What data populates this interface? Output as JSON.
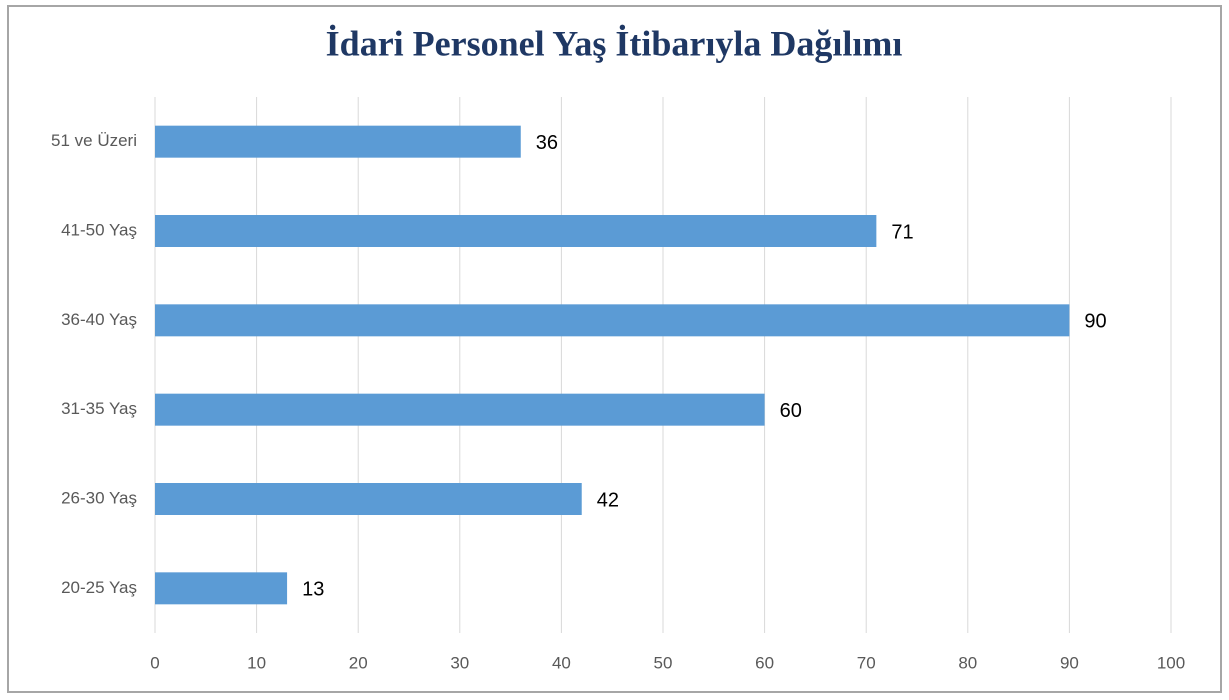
{
  "chart_data": {
    "type": "barh",
    "title": "İdari Personel Yaş İtibarıyla Dağılımı",
    "categories": [
      "20-25 Yaş",
      "26-30 Yaş",
      "31-35 Yaş",
      "36-40 Yaş",
      "41-50 Yaş",
      "51 ve Üzeri"
    ],
    "values": [
      13,
      42,
      60,
      90,
      71,
      36
    ],
    "color": "#5b9bd5",
    "xlim": [
      0,
      100
    ],
    "xticks": [
      0,
      10,
      20,
      30,
      40,
      50,
      60,
      70,
      80,
      90,
      100
    ],
    "grid": true
  }
}
